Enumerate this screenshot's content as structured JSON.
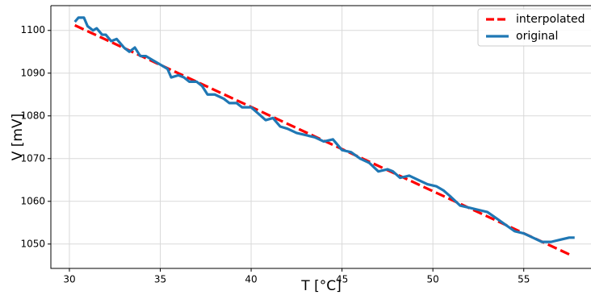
{
  "chart_data": {
    "type": "line",
    "x_label": "T [°C]",
    "y_label": "V [mV]",
    "xlim": [
      28.98,
      58.7
    ],
    "ylim": [
      1044.3,
      1105.8
    ],
    "xticks": [
      30,
      35,
      40,
      45,
      50,
      55
    ],
    "yticks": [
      1050,
      1060,
      1070,
      1080,
      1090,
      1100
    ],
    "grid": true,
    "legend": "upper right",
    "series": [
      {
        "name": "interpolated",
        "color": "#ff0000",
        "linestyle": "dashed",
        "x": [
          30.3,
          57.7
        ],
        "values": [
          1101.2,
          1047.2
        ]
      },
      {
        "name": "original",
        "color": "#1f77b4",
        "linestyle": "solid",
        "x": [
          30.3,
          30.5,
          30.8,
          31,
          31.3,
          31.5,
          31.8,
          32,
          32.3,
          32.6,
          33,
          33.3,
          33.6,
          33.9,
          34.2,
          34.6,
          35,
          35.4,
          35.6,
          36,
          36.3,
          36.6,
          37,
          37.3,
          37.6,
          38,
          38.5,
          38.8,
          39.2,
          39.5,
          40,
          40.4,
          40.8,
          41.2,
          41.6,
          42,
          42.5,
          43,
          43.5,
          44,
          44.5,
          45,
          45.5,
          46,
          46.5,
          47,
          47.5,
          47.8,
          48.2,
          48.7,
          49.2,
          49.7,
          50.2,
          50.6,
          51,
          51.5,
          52,
          52.5,
          53,
          53.5,
          54,
          54.5,
          55,
          55.5,
          56,
          56.5,
          57,
          57.5,
          57.8
        ],
        "values": [
          1102,
          1103,
          1103,
          1101,
          1100,
          1100.5,
          1099,
          1099,
          1097.5,
          1098,
          1096,
          1095,
          1096,
          1094,
          1094,
          1093,
          1092,
          1091,
          1089,
          1089.5,
          1089,
          1088,
          1088,
          1087,
          1085,
          1085,
          1084,
          1083,
          1083,
          1082,
          1082,
          1080.5,
          1079,
          1079.5,
          1077.5,
          1077,
          1076,
          1075.5,
          1075,
          1074,
          1074.5,
          1072,
          1071.5,
          1070,
          1069,
          1067,
          1067.5,
          1067,
          1065.5,
          1066,
          1065,
          1064,
          1063.5,
          1062.5,
          1061,
          1059,
          1058.5,
          1058,
          1057.5,
          1056,
          1054.5,
          1053,
          1052.5,
          1051.5,
          1050.5,
          1050.5,
          1051,
          1051.5,
          1051.5
        ]
      }
    ]
  }
}
